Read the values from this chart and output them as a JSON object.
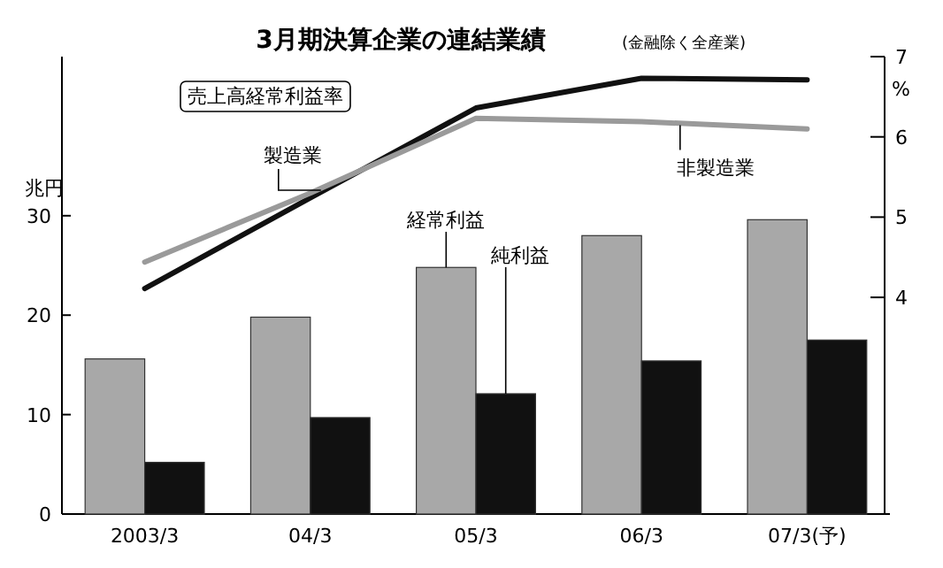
{
  "chart_data": {
    "type": "bar",
    "title": "3月期決算企業の連結業績",
    "subtitle": "(金融除く全産業)",
    "ylabel": "兆円",
    "y2label": "%",
    "annotations": [
      "売上高経常利益率"
    ],
    "categories": [
      "2003/3",
      "04/3",
      "05/3",
      "06/3",
      "07/3(予)"
    ],
    "series": [
      {
        "name": "経常利益",
        "color": "#a8a8a8",
        "values": [
          15.6,
          19.8,
          24.8,
          28.0,
          29.6
        ]
      },
      {
        "name": "純利益",
        "color": "#111111",
        "values": [
          5.2,
          9.7,
          12.1,
          15.4,
          17.5
        ]
      },
      {
        "name": "製造業",
        "type": "line",
        "axis": "y2",
        "color": "#111111",
        "values": [
          4.11,
          5.24,
          6.36,
          6.73,
          6.71
        ]
      },
      {
        "name": "非製造業",
        "type": "line",
        "axis": "y2",
        "color": "#9a9a9a",
        "values": [
          4.44,
          5.3,
          6.23,
          6.19,
          6.1
        ]
      }
    ],
    "ylim": [
      0,
      46
    ],
    "yticks": [
      0,
      10,
      20,
      30
    ],
    "y2lim": [
      1.3,
      7
    ],
    "y2ticks": [
      4,
      5,
      6,
      7
    ],
    "grid": false,
    "legend": false
  }
}
